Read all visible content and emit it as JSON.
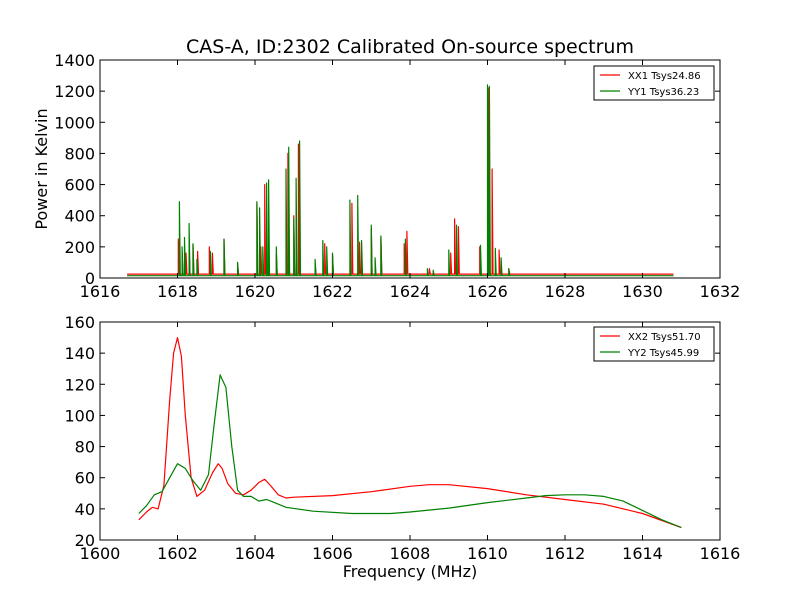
{
  "title": "CAS-A, ID:2302 Calibrated On-source spectrum",
  "chart_data": [
    {
      "type": "line",
      "title": "CAS-A, ID:2302 Calibrated On-source spectrum",
      "xlabel": "",
      "ylabel": "Power in Kelvin",
      "xlim": [
        1616,
        1632
      ],
      "ylim": [
        0,
        1400
      ],
      "xticks": [
        1616,
        1618,
        1620,
        1622,
        1624,
        1626,
        1628,
        1630,
        1632
      ],
      "yticks": [
        0,
        200,
        400,
        600,
        800,
        1000,
        1200,
        1400
      ],
      "xtick_labels": [
        "1616",
        "1618",
        "1620",
        "1622",
        "1624",
        "1626",
        "1628",
        "1630",
        "1632"
      ],
      "ytick_labels": [
        "0",
        "200",
        "400",
        "600",
        "800",
        "1000",
        "1200",
        "1400"
      ],
      "grid": false,
      "legend_position": "top-right",
      "baseline_x": [
        1616.7,
        1630.8
      ],
      "series": [
        {
          "name": "XX1 Tsys24.86",
          "color": "#ff0000",
          "baseline": 25,
          "spikes": [
            [
              1618.02,
              250
            ],
            [
              1618.12,
              160
            ],
            [
              1618.22,
              160
            ],
            [
              1618.3,
              190
            ],
            [
              1618.4,
              210
            ],
            [
              1618.52,
              170
            ],
            [
              1618.82,
              200
            ],
            [
              1618.9,
              160
            ],
            [
              1619.2,
              250
            ],
            [
              1619.55,
              90
            ],
            [
              1620.05,
              480
            ],
            [
              1620.15,
              200
            ],
            [
              1620.25,
              600
            ],
            [
              1620.55,
              150
            ],
            [
              1620.85,
              800
            ],
            [
              1621.0,
              400
            ],
            [
              1621.12,
              860
            ],
            [
              1621.55,
              100
            ],
            [
              1621.8,
              220
            ],
            [
              1622.0,
              150
            ],
            [
              1622.5,
              480
            ],
            [
              1622.7,
              230
            ],
            [
              1623.0,
              320
            ],
            [
              1623.25,
              260
            ],
            [
              1623.85,
              220
            ],
            [
              1623.92,
              300
            ],
            [
              1624.5,
              60
            ],
            [
              1625.05,
              160
            ],
            [
              1625.15,
              380
            ],
            [
              1625.25,
              330
            ],
            [
              1625.8,
              200
            ],
            [
              1626.02,
              1220
            ],
            [
              1626.12,
              700
            ],
            [
              1626.3,
              180
            ],
            [
              1626.55,
              60
            ]
          ]
        },
        {
          "name": "YY1 Tsys36.23",
          "color": "#008000",
          "baseline": 15,
          "spikes": [
            [
              1618.05,
              490
            ],
            [
              1618.12,
              200
            ],
            [
              1618.18,
              260
            ],
            [
              1618.3,
              350
            ],
            [
              1618.4,
              220
            ],
            [
              1618.5,
              120
            ],
            [
              1618.85,
              170
            ],
            [
              1619.2,
              250
            ],
            [
              1619.55,
              100
            ],
            [
              1620.05,
              490
            ],
            [
              1620.12,
              450
            ],
            [
              1620.2,
              200
            ],
            [
              1620.3,
              610
            ],
            [
              1620.35,
              630
            ],
            [
              1620.55,
              200
            ],
            [
              1620.8,
              700
            ],
            [
              1620.87,
              840
            ],
            [
              1621.0,
              380
            ],
            [
              1621.06,
              640
            ],
            [
              1621.15,
              880
            ],
            [
              1621.55,
              120
            ],
            [
              1621.75,
              240
            ],
            [
              1621.85,
              200
            ],
            [
              1622.0,
              160
            ],
            [
              1622.45,
              500
            ],
            [
              1622.65,
              530
            ],
            [
              1622.75,
              240
            ],
            [
              1623.0,
              340
            ],
            [
              1623.1,
              130
            ],
            [
              1623.25,
              270
            ],
            [
              1623.88,
              250
            ],
            [
              1624.45,
              60
            ],
            [
              1624.6,
              50
            ],
            [
              1625.0,
              180
            ],
            [
              1625.2,
              340
            ],
            [
              1625.82,
              210
            ],
            [
              1626.0,
              1240
            ],
            [
              1626.05,
              1230
            ],
            [
              1626.2,
              190
            ],
            [
              1626.35,
              130
            ],
            [
              1626.55,
              60
            ]
          ]
        }
      ]
    },
    {
      "type": "line",
      "title": "",
      "xlabel": "Frequency (MHz)",
      "ylabel": "",
      "xlim": [
        1600,
        1616
      ],
      "ylim": [
        20,
        160
      ],
      "xticks": [
        1600,
        1602,
        1604,
        1606,
        1608,
        1610,
        1612,
        1614,
        1616
      ],
      "yticks": [
        20,
        40,
        60,
        80,
        100,
        120,
        140,
        160
      ],
      "xtick_labels": [
        "1600",
        "1602",
        "1604",
        "1606",
        "1608",
        "1610",
        "1612",
        "1614",
        "1616"
      ],
      "ytick_labels": [
        "20",
        "40",
        "60",
        "80",
        "100",
        "120",
        "140",
        "160"
      ],
      "grid": false,
      "legend_position": "top-right",
      "series": [
        {
          "name": "XX2 Tsys51.70",
          "color": "#ff0000",
          "x": [
            1601.0,
            1601.2,
            1601.35,
            1601.5,
            1601.65,
            1601.8,
            1601.9,
            1602.0,
            1602.1,
            1602.2,
            1602.35,
            1602.5,
            1602.7,
            1602.9,
            1603.05,
            1603.15,
            1603.3,
            1603.5,
            1603.7,
            1603.9,
            1604.1,
            1604.25,
            1604.4,
            1604.6,
            1604.8,
            1605.0,
            1606.0,
            1607.0,
            1608.0,
            1608.5,
            1609.0,
            1610.0,
            1611.0,
            1612.0,
            1613.0,
            1614.0,
            1615.0
          ],
          "y": [
            33,
            38,
            41,
            40,
            55,
            110,
            140,
            150,
            138,
            100,
            60,
            48,
            52,
            63,
            69,
            66,
            56,
            50,
            49,
            52,
            57,
            59,
            55,
            49,
            47,
            47.5,
            48.5,
            51,
            54.5,
            55.5,
            55.5,
            53,
            49,
            46,
            43,
            37,
            28
          ]
        },
        {
          "name": "YY2 Tsys45.99",
          "color": "#008000",
          "x": [
            1601.0,
            1601.2,
            1601.4,
            1601.6,
            1601.8,
            1602.0,
            1602.2,
            1602.4,
            1602.6,
            1602.8,
            1602.95,
            1603.1,
            1603.25,
            1603.4,
            1603.55,
            1603.7,
            1603.9,
            1604.1,
            1604.3,
            1604.5,
            1604.8,
            1605.5,
            1606.5,
            1607.5,
            1608.0,
            1609.0,
            1610.0,
            1611.0,
            1611.5,
            1612.0,
            1612.5,
            1613.0,
            1613.5,
            1614.0,
            1614.5,
            1615.0
          ],
          "y": [
            37,
            42,
            49,
            51,
            60,
            69,
            66,
            58,
            52,
            62,
            95,
            126,
            118,
            80,
            52,
            48,
            48,
            45,
            46,
            44,
            41,
            38.5,
            37,
            37,
            38,
            40.5,
            44,
            47,
            48.5,
            49,
            49,
            48,
            45,
            39,
            33,
            28
          ]
        }
      ]
    }
  ]
}
